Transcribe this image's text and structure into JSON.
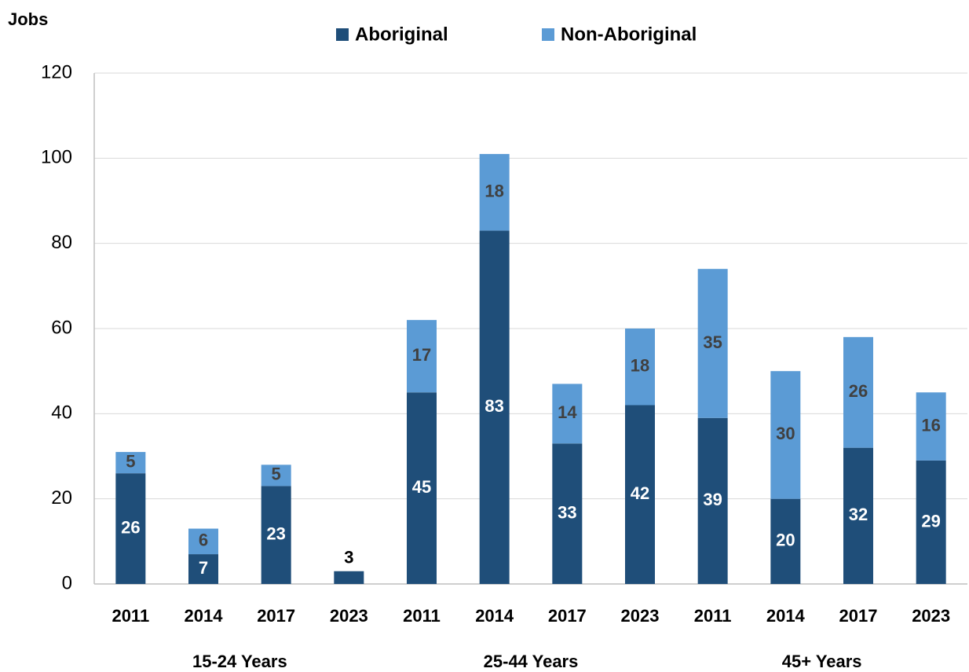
{
  "chart_data": {
    "type": "stacked_bar",
    "y_label": "Jobs",
    "groups": [
      {
        "name": "15-24 Years",
        "categories": [
          "2011",
          "2014",
          "2017",
          "2023"
        ]
      },
      {
        "name": "25-44 Years",
        "categories": [
          "2011",
          "2014",
          "2017",
          "2023"
        ]
      },
      {
        "name": "45+ Years",
        "categories": [
          "2011",
          "2014",
          "2017",
          "2023"
        ]
      }
    ],
    "series": [
      {
        "name": "Aboriginal",
        "color": "#1f4e79",
        "values": [
          26,
          7,
          23,
          3,
          45,
          83,
          33,
          42,
          39,
          20,
          32,
          29
        ]
      },
      {
        "name": "Non-Aboriginal",
        "color": "#5b9bd5",
        "values": [
          5,
          6,
          5,
          null,
          17,
          18,
          14,
          18,
          35,
          30,
          26,
          16
        ]
      }
    ],
    "ylim": [
      0,
      120
    ],
    "yticks": [
      0,
      20,
      40,
      60,
      80,
      100,
      120
    ],
    "grid": true,
    "legend": "top"
  }
}
